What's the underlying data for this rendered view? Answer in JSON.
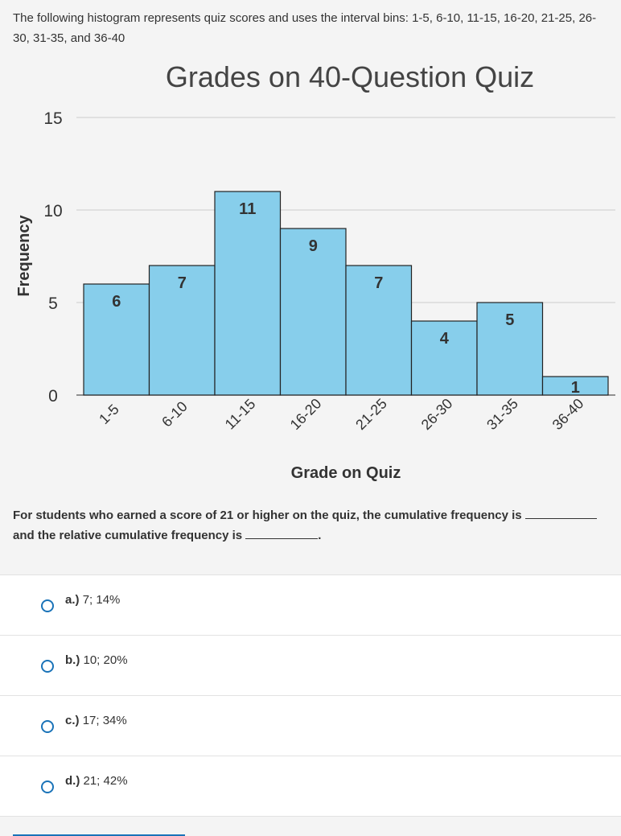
{
  "intro": "The following histogram represents quiz scores and uses the interval bins: 1-5, 6-10, 11-15, 16-20, 21-25, 26-30, 31-35, and 36-40",
  "colors": {
    "bar_fill": "#87ceeb",
    "bar_stroke": "#222222",
    "grid": "#cccccc",
    "radio": "#1a73b8"
  },
  "chart_data": {
    "type": "bar",
    "title": "Grades on 40-Question Quiz",
    "xlabel": "Grade on Quiz",
    "ylabel": "Frequency",
    "categories": [
      "1-5",
      "6-10",
      "11-15",
      "16-20",
      "21-25",
      "26-30",
      "31-35",
      "36-40"
    ],
    "values": [
      6,
      7,
      11,
      9,
      7,
      4,
      5,
      1
    ],
    "yticks": [
      0,
      5,
      10,
      15
    ],
    "ylim": [
      0,
      15
    ],
    "grid": true
  },
  "question": {
    "part1": "For students who earned a score of 21 or higher on the quiz, the cumulative frequency is",
    "part2": "and the relative cumulative frequency is",
    "end": "."
  },
  "options": [
    {
      "letter": "a.)",
      "text": "7; 14%"
    },
    {
      "letter": "b.)",
      "text": "10; 20%"
    },
    {
      "letter": "c.)",
      "text": "17; 34%"
    },
    {
      "letter": "d.)",
      "text": "21; 42%"
    }
  ]
}
